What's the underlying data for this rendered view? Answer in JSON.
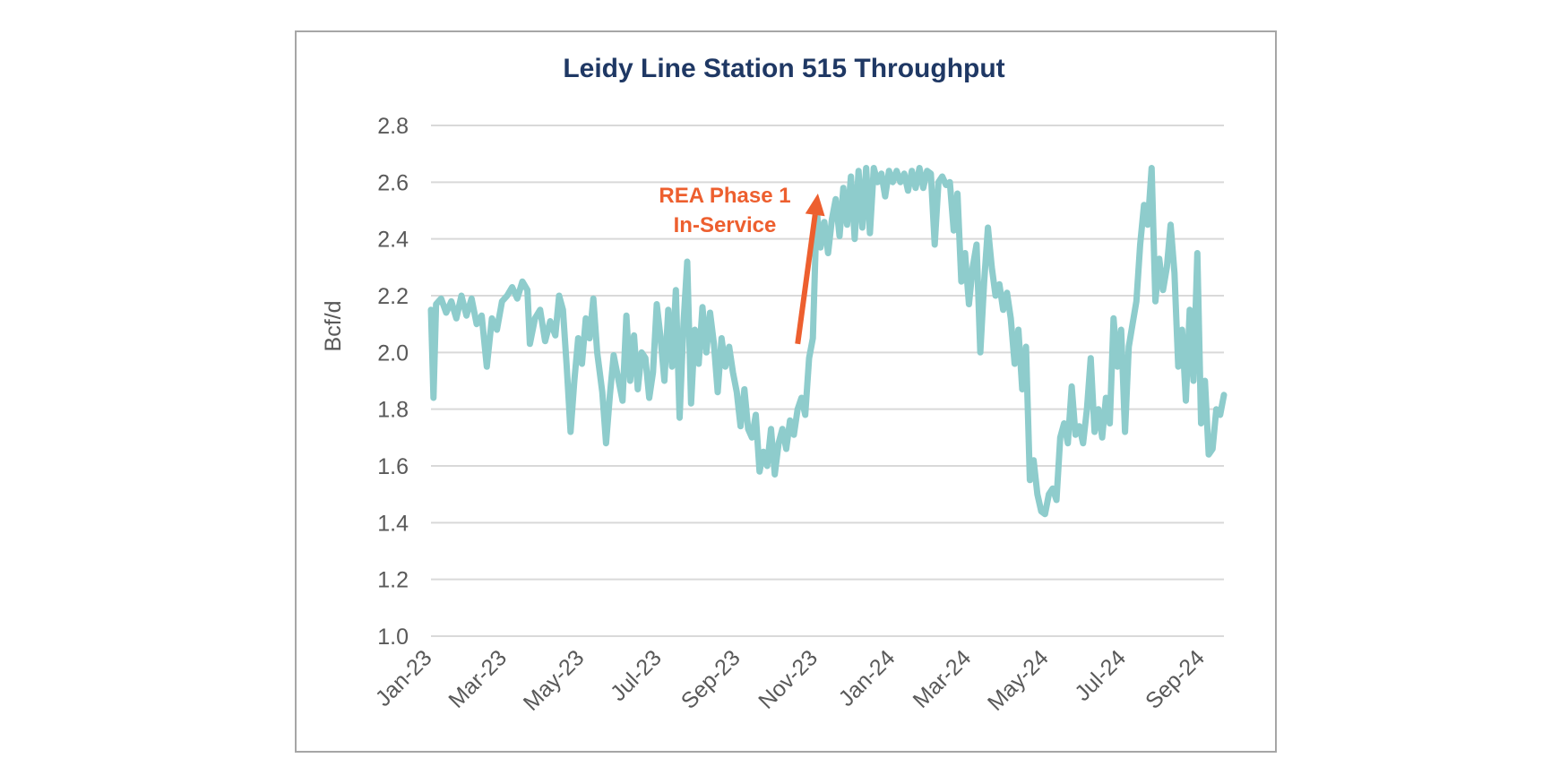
{
  "chart_data": {
    "type": "line",
    "title": "Leidy Line Station 515 Throughput",
    "ylabel": "Bcf/d",
    "xlabel": "",
    "ylim": [
      1.0,
      2.8
    ],
    "yticks": [
      "1.0",
      "1.2",
      "1.4",
      "1.6",
      "1.8",
      "2.0",
      "2.2",
      "2.4",
      "2.6",
      "2.8"
    ],
    "xticks": [
      "Jan-23",
      "Mar-23",
      "May-23",
      "Jul-23",
      "Sep-23",
      "Nov-23",
      "Jan-24",
      "Mar-24",
      "May-24",
      "Jul-24",
      "Sep-24"
    ],
    "grid": true,
    "series_color": "#8ecccc",
    "annotation": {
      "lines": [
        "REA Phase 1",
        "In-Service"
      ],
      "color": "#ed5f2f",
      "arrow_from": [
        "2023-10-17",
        2.03
      ],
      "arrow_to": [
        "2023-11-02",
        2.56
      ]
    },
    "series": [
      {
        "points": [
          [
            "2023-01-01",
            2.15
          ],
          [
            "2023-01-03",
            1.84
          ],
          [
            "2023-01-05",
            2.17
          ],
          [
            "2023-01-09",
            2.19
          ],
          [
            "2023-01-13",
            2.14
          ],
          [
            "2023-01-17",
            2.18
          ],
          [
            "2023-01-21",
            2.12
          ],
          [
            "2023-01-25",
            2.2
          ],
          [
            "2023-01-29",
            2.13
          ],
          [
            "2023-02-02",
            2.19
          ],
          [
            "2023-02-06",
            2.1
          ],
          [
            "2023-02-10",
            2.13
          ],
          [
            "2023-02-14",
            1.95
          ],
          [
            "2023-02-18",
            2.12
          ],
          [
            "2023-02-22",
            2.08
          ],
          [
            "2023-02-26",
            2.18
          ],
          [
            "2023-03-02",
            2.2
          ],
          [
            "2023-03-06",
            2.23
          ],
          [
            "2023-03-10",
            2.19
          ],
          [
            "2023-03-14",
            2.25
          ],
          [
            "2023-03-18",
            2.22
          ],
          [
            "2023-03-20",
            2.03
          ],
          [
            "2023-03-24",
            2.12
          ],
          [
            "2023-03-28",
            2.15
          ],
          [
            "2023-04-01",
            2.04
          ],
          [
            "2023-04-05",
            2.11
          ],
          [
            "2023-04-09",
            2.06
          ],
          [
            "2023-04-12",
            2.2
          ],
          [
            "2023-04-15",
            2.15
          ],
          [
            "2023-04-18",
            1.95
          ],
          [
            "2023-04-21",
            1.72
          ],
          [
            "2023-04-24",
            1.9
          ],
          [
            "2023-04-27",
            2.05
          ],
          [
            "2023-04-30",
            1.96
          ],
          [
            "2023-05-03",
            2.12
          ],
          [
            "2023-05-06",
            2.05
          ],
          [
            "2023-05-09",
            2.19
          ],
          [
            "2023-05-12",
            2.0
          ],
          [
            "2023-05-16",
            1.86
          ],
          [
            "2023-05-19",
            1.68
          ],
          [
            "2023-05-22",
            1.85
          ],
          [
            "2023-05-25",
            1.99
          ],
          [
            "2023-05-28",
            1.92
          ],
          [
            "2023-06-01",
            1.83
          ],
          [
            "2023-06-04",
            2.13
          ],
          [
            "2023-06-07",
            1.9
          ],
          [
            "2023-06-10",
            2.06
          ],
          [
            "2023-06-13",
            1.87
          ],
          [
            "2023-06-16",
            2.0
          ],
          [
            "2023-06-19",
            1.98
          ],
          [
            "2023-06-22",
            1.84
          ],
          [
            "2023-06-25",
            1.93
          ],
          [
            "2023-06-28",
            2.17
          ],
          [
            "2023-07-01",
            2.05
          ],
          [
            "2023-07-04",
            1.9
          ],
          [
            "2023-07-07",
            2.15
          ],
          [
            "2023-07-10",
            1.95
          ],
          [
            "2023-07-13",
            2.22
          ],
          [
            "2023-07-16",
            1.77
          ],
          [
            "2023-07-19",
            2.1
          ],
          [
            "2023-07-22",
            2.32
          ],
          [
            "2023-07-25",
            1.82
          ],
          [
            "2023-07-28",
            2.08
          ],
          [
            "2023-07-31",
            1.96
          ],
          [
            "2023-08-03",
            2.16
          ],
          [
            "2023-08-06",
            2.0
          ],
          [
            "2023-08-09",
            2.14
          ],
          [
            "2023-08-12",
            2.03
          ],
          [
            "2023-08-15",
            1.86
          ],
          [
            "2023-08-18",
            2.05
          ],
          [
            "2023-08-21",
            1.95
          ],
          [
            "2023-08-24",
            2.02
          ],
          [
            "2023-08-27",
            1.93
          ],
          [
            "2023-08-30",
            1.86
          ],
          [
            "2023-09-02",
            1.74
          ],
          [
            "2023-09-05",
            1.87
          ],
          [
            "2023-09-08",
            1.73
          ],
          [
            "2023-09-11",
            1.7
          ],
          [
            "2023-09-14",
            1.78
          ],
          [
            "2023-09-17",
            1.58
          ],
          [
            "2023-09-20",
            1.65
          ],
          [
            "2023-09-23",
            1.6
          ],
          [
            "2023-09-26",
            1.73
          ],
          [
            "2023-09-29",
            1.57
          ],
          [
            "2023-10-02",
            1.68
          ],
          [
            "2023-10-05",
            1.73
          ],
          [
            "2023-10-08",
            1.66
          ],
          [
            "2023-10-11",
            1.76
          ],
          [
            "2023-10-14",
            1.71
          ],
          [
            "2023-10-17",
            1.8
          ],
          [
            "2023-10-20",
            1.84
          ],
          [
            "2023-10-23",
            1.78
          ],
          [
            "2023-10-26",
            1.98
          ],
          [
            "2023-10-29",
            2.05
          ],
          [
            "2023-11-01",
            2.5
          ],
          [
            "2023-11-04",
            2.37
          ],
          [
            "2023-11-07",
            2.46
          ],
          [
            "2023-11-10",
            2.35
          ],
          [
            "2023-11-13",
            2.47
          ],
          [
            "2023-11-16",
            2.54
          ],
          [
            "2023-11-19",
            2.41
          ],
          [
            "2023-11-22",
            2.58
          ],
          [
            "2023-11-25",
            2.45
          ],
          [
            "2023-11-28",
            2.62
          ],
          [
            "2023-12-01",
            2.4
          ],
          [
            "2023-12-04",
            2.64
          ],
          [
            "2023-12-07",
            2.44
          ],
          [
            "2023-12-10",
            2.65
          ],
          [
            "2023-12-13",
            2.42
          ],
          [
            "2023-12-16",
            2.65
          ],
          [
            "2023-12-19",
            2.6
          ],
          [
            "2023-12-22",
            2.63
          ],
          [
            "2023-12-25",
            2.55
          ],
          [
            "2023-12-28",
            2.64
          ],
          [
            "2023-12-31",
            2.6
          ],
          [
            "2024-01-03",
            2.64
          ],
          [
            "2024-01-06",
            2.6
          ],
          [
            "2024-01-09",
            2.63
          ],
          [
            "2024-01-12",
            2.57
          ],
          [
            "2024-01-15",
            2.64
          ],
          [
            "2024-01-18",
            2.58
          ],
          [
            "2024-01-21",
            2.65
          ],
          [
            "2024-01-24",
            2.58
          ],
          [
            "2024-01-27",
            2.64
          ],
          [
            "2024-01-30",
            2.63
          ],
          [
            "2024-02-02",
            2.38
          ],
          [
            "2024-02-05",
            2.6
          ],
          [
            "2024-02-08",
            2.62
          ],
          [
            "2024-02-11",
            2.59
          ],
          [
            "2024-02-14",
            2.6
          ],
          [
            "2024-02-17",
            2.43
          ],
          [
            "2024-02-20",
            2.56
          ],
          [
            "2024-02-23",
            2.25
          ],
          [
            "2024-02-26",
            2.35
          ],
          [
            "2024-02-29",
            2.17
          ],
          [
            "2024-03-03",
            2.3
          ],
          [
            "2024-03-06",
            2.38
          ],
          [
            "2024-03-09",
            2.0
          ],
          [
            "2024-03-12",
            2.25
          ],
          [
            "2024-03-15",
            2.44
          ],
          [
            "2024-03-18",
            2.3
          ],
          [
            "2024-03-21",
            2.2
          ],
          [
            "2024-03-24",
            2.24
          ],
          [
            "2024-03-27",
            2.15
          ],
          [
            "2024-03-30",
            2.21
          ],
          [
            "2024-04-02",
            2.12
          ],
          [
            "2024-04-05",
            1.96
          ],
          [
            "2024-04-08",
            2.08
          ],
          [
            "2024-04-11",
            1.87
          ],
          [
            "2024-04-14",
            2.02
          ],
          [
            "2024-04-17",
            1.55
          ],
          [
            "2024-04-20",
            1.62
          ],
          [
            "2024-04-23",
            1.5
          ],
          [
            "2024-04-26",
            1.44
          ],
          [
            "2024-04-29",
            1.43
          ],
          [
            "2024-05-02",
            1.5
          ],
          [
            "2024-05-05",
            1.52
          ],
          [
            "2024-05-08",
            1.48
          ],
          [
            "2024-05-11",
            1.7
          ],
          [
            "2024-05-14",
            1.75
          ],
          [
            "2024-05-17",
            1.68
          ],
          [
            "2024-05-20",
            1.88
          ],
          [
            "2024-05-23",
            1.71
          ],
          [
            "2024-05-26",
            1.74
          ],
          [
            "2024-05-29",
            1.68
          ],
          [
            "2024-06-01",
            1.8
          ],
          [
            "2024-06-04",
            1.98
          ],
          [
            "2024-06-07",
            1.72
          ],
          [
            "2024-06-10",
            1.8
          ],
          [
            "2024-06-13",
            1.7
          ],
          [
            "2024-06-16",
            1.84
          ],
          [
            "2024-06-19",
            1.75
          ],
          [
            "2024-06-22",
            2.12
          ],
          [
            "2024-06-25",
            1.95
          ],
          [
            "2024-06-28",
            2.08
          ],
          [
            "2024-07-01",
            1.72
          ],
          [
            "2024-07-04",
            2.02
          ],
          [
            "2024-07-07",
            2.1
          ],
          [
            "2024-07-10",
            2.18
          ],
          [
            "2024-07-13",
            2.38
          ],
          [
            "2024-07-16",
            2.52
          ],
          [
            "2024-07-19",
            2.45
          ],
          [
            "2024-07-22",
            2.65
          ],
          [
            "2024-07-25",
            2.18
          ],
          [
            "2024-07-28",
            2.33
          ],
          [
            "2024-07-31",
            2.22
          ],
          [
            "2024-08-03",
            2.3
          ],
          [
            "2024-08-06",
            2.45
          ],
          [
            "2024-08-09",
            2.28
          ],
          [
            "2024-08-12",
            1.95
          ],
          [
            "2024-08-15",
            2.08
          ],
          [
            "2024-08-18",
            1.83
          ],
          [
            "2024-08-21",
            2.15
          ],
          [
            "2024-08-24",
            1.9
          ],
          [
            "2024-08-27",
            2.35
          ],
          [
            "2024-08-30",
            1.75
          ],
          [
            "2024-09-02",
            1.9
          ],
          [
            "2024-09-05",
            1.64
          ],
          [
            "2024-09-08",
            1.66
          ],
          [
            "2024-09-11",
            1.8
          ],
          [
            "2024-09-14",
            1.78
          ],
          [
            "2024-09-17",
            1.85
          ]
        ]
      }
    ]
  }
}
